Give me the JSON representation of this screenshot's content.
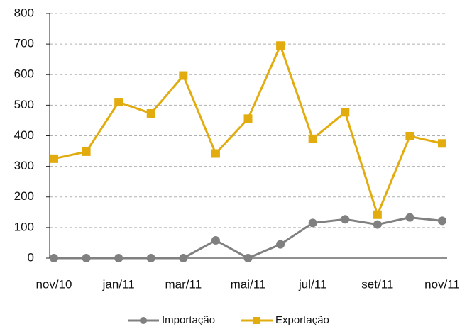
{
  "chart_data": {
    "type": "line",
    "categories": [
      "nov/10",
      null,
      "jan/11",
      null,
      "mar/11",
      null,
      "mai/11",
      null,
      "jul/11",
      null,
      "set/11",
      null,
      "nov/11"
    ],
    "series": [
      {
        "name": "Importação",
        "color": "#808080",
        "marker": "circle",
        "values": [
          0,
          0,
          0,
          0,
          0,
          58,
          0,
          45,
          115,
          127,
          110,
          133,
          122
        ]
      },
      {
        "name": "Exportação",
        "color": "#e3ac0e",
        "marker": "square",
        "values": [
          325,
          348,
          510,
          473,
          597,
          342,
          456,
          695,
          390,
          477,
          142,
          399,
          375
        ]
      }
    ],
    "ylim": [
      0,
      800
    ],
    "yticks": [
      0,
      100,
      200,
      300,
      400,
      500,
      600,
      700,
      800
    ],
    "grid": true,
    "legend": "bottom"
  }
}
